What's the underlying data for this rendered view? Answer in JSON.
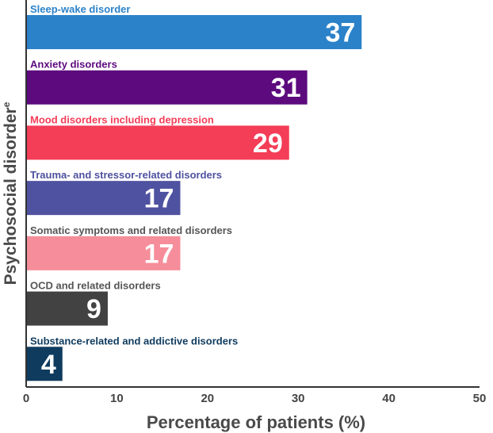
{
  "chart_data": {
    "type": "bar",
    "orientation": "horizontal",
    "categories": [
      "Sleep-wake disorder",
      "Anxiety disorders",
      "Mood disorders including depression",
      "Trauma- and stressor-related disorders",
      "Somatic symptoms and related disorders",
      "OCD and related disorders",
      "Substance-related and addictive disorders"
    ],
    "values": [
      37,
      31,
      29,
      17,
      17,
      9,
      4
    ],
    "value_labels": [
      "37",
      "31",
      "29",
      "17",
      "17",
      "9",
      "4"
    ],
    "bar_colors": [
      "#2b82c9",
      "#5c0a7e",
      "#f43d57",
      "#4f52a0",
      "#f68d9a",
      "#424242",
      "#0f3b5e"
    ],
    "label_colors": [
      "#2b82c9",
      "#5c0a7e",
      "#f43d57",
      "#4f52a0",
      "#555555",
      "#555555",
      "#0f3b5e"
    ],
    "xlabel": "Percentage of patients (%)",
    "ylabel": "Psychosocial disorder",
    "ylabel_superscript": "e",
    "xlim": [
      0,
      50
    ],
    "xticks": [
      0,
      10,
      20,
      30,
      40,
      50
    ],
    "grid": false,
    "legend": "none"
  }
}
